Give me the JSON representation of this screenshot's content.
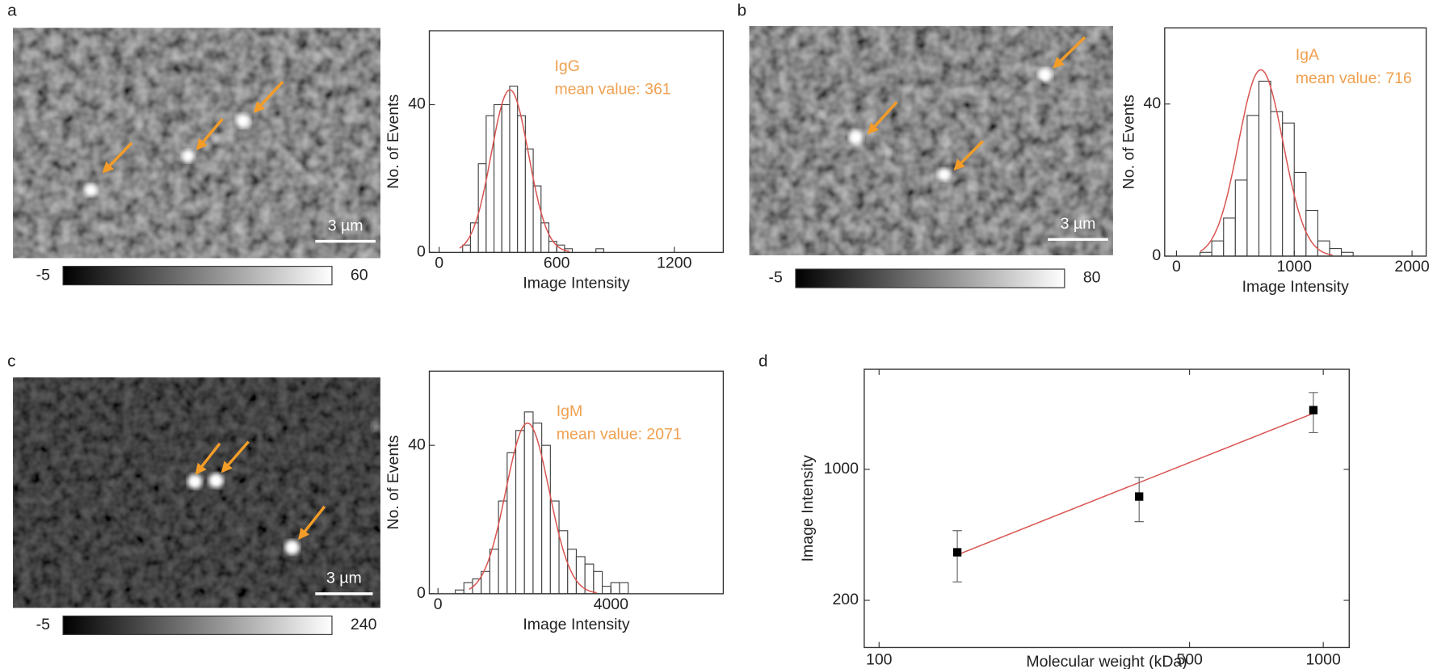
{
  "chart_data": [
    {
      "type": "histogram",
      "panel": "a",
      "scale_bar": "3 µm",
      "colorbar_range": [
        -5,
        60
      ],
      "annotation": [
        "IgG",
        "mean value: 361"
      ],
      "annotation_color": "#f0a050",
      "xlabel": "Image Intensity",
      "ylabel": "No. of Events",
      "bins": [
        120,
        160,
        200,
        240,
        280,
        320,
        360,
        400,
        440,
        480,
        520,
        560,
        600,
        640,
        680,
        720,
        760,
        800,
        840
      ],
      "counts": [
        2,
        8,
        24,
        37,
        40,
        40,
        45,
        37,
        28,
        18,
        8,
        3,
        2,
        1,
        0,
        0,
        0,
        1
      ],
      "fit": {
        "amplitude": 44,
        "center": 361,
        "sigma": 95,
        "color": "#d9534f"
      },
      "xlim": [
        -50,
        1450
      ],
      "ylim": [
        0,
        60
      ],
      "xticks": [
        0,
        600,
        1200
      ],
      "yticks": [
        0,
        40
      ]
    },
    {
      "type": "histogram",
      "panel": "b",
      "scale_bar": "3 µm",
      "colorbar_range": [
        -5,
        80
      ],
      "annotation": [
        "IgA",
        "mean value: 716"
      ],
      "annotation_color": "#f0a050",
      "xlabel": "Image Intensity",
      "ylabel": "No. of Events",
      "bins": [
        200,
        300,
        400,
        500,
        600,
        700,
        800,
        900,
        1000,
        1100,
        1200,
        1300,
        1400,
        1500
      ],
      "counts": [
        1,
        4,
        10,
        20,
        37,
        46,
        38,
        35,
        22,
        12,
        4,
        2,
        1
      ],
      "fit": {
        "amplitude": 49,
        "center": 716,
        "sigma": 190,
        "color": "#d9534f"
      },
      "xlim": [
        -100,
        2120
      ],
      "ylim": [
        0,
        60
      ],
      "xticks": [
        0,
        1000,
        2000
      ],
      "yticks": [
        0,
        40
      ]
    },
    {
      "type": "histogram",
      "panel": "c",
      "scale_bar": "3 µm",
      "colorbar_range": [
        -5,
        240
      ],
      "annotation": [
        "IgM",
        "mean value: 2071"
      ],
      "annotation_color": "#f0a050",
      "xlabel": "Image Intensity",
      "ylabel": "No. of Events",
      "bins": [
        400,
        600,
        800,
        1000,
        1200,
        1400,
        1600,
        1800,
        2000,
        2200,
        2400,
        2600,
        2800,
        3000,
        3200,
        3400,
        3600,
        3800,
        4000,
        4200,
        4400
      ],
      "counts": [
        1,
        3,
        4,
        6,
        12,
        25,
        38,
        44,
        49,
        46,
        40,
        25,
        17,
        12,
        10,
        8,
        6,
        2,
        3,
        3
      ],
      "fit": {
        "amplitude": 46,
        "center": 2071,
        "sigma": 500,
        "color": "#d9534f"
      },
      "xlim": [
        -200,
        6600
      ],
      "ylim": [
        0,
        60
      ],
      "xticks": [
        0,
        4000
      ],
      "yticks": [
        0,
        40
      ]
    },
    {
      "type": "scatter",
      "panel": "d",
      "xlabel": "Molecular weight (kDa)",
      "ylabel": "Image Intensity",
      "x": [
        150,
        385,
        950
      ],
      "values": [
        361,
        716,
        2071
      ],
      "errors": [
        110,
        190,
        500
      ],
      "color": "#000000",
      "fit": {
        "x": [
          150,
          950
        ],
        "y": [
          350,
          1990
        ],
        "color": "#d9534f"
      },
      "log_x": true,
      "log_y": true,
      "xlim": [
        92.6,
        1144
      ],
      "ylim": [
        112,
        3420
      ],
      "xticks": [
        100,
        500,
        1000
      ],
      "yticks": [
        200,
        1000
      ]
    }
  ]
}
